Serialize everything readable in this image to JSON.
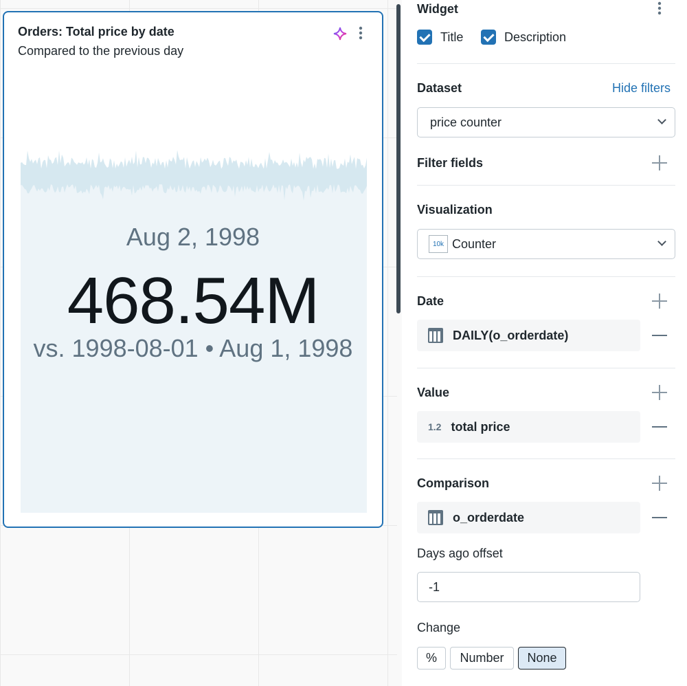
{
  "widget_card": {
    "title": "Orders: Total price by date",
    "description": "Compared to the previous day",
    "counter": {
      "date": "Aug 2, 1998",
      "value": "468.54M",
      "comparison": "vs. 1998-08-01 • Aug 1, 1998"
    },
    "icons": [
      "sparkle-icon",
      "kebab-menu-icon"
    ],
    "accent_color": "#2272b4"
  },
  "sidebar": {
    "widget": {
      "heading": "Widget",
      "title_label": "Title",
      "title_checked": true,
      "description_label": "Description",
      "description_checked": true
    },
    "dataset": {
      "heading": "Dataset",
      "hide_filters": "Hide filters",
      "selected": "price counter"
    },
    "filter_fields": {
      "heading": "Filter fields"
    },
    "visualization": {
      "heading": "Visualization",
      "icon_text": "10k",
      "selected": "Counter"
    },
    "date": {
      "heading": "Date",
      "field": "DAILY(o_orderdate)"
    },
    "value": {
      "heading": "Value",
      "type_badge": "1.2",
      "field": "total price"
    },
    "comparison": {
      "heading": "Comparison",
      "field": "o_orderdate",
      "offset_label": "Days ago offset",
      "offset_value": "-1",
      "change_label": "Change",
      "change_options": [
        "%",
        "Number",
        "None"
      ],
      "change_selected": "None"
    }
  }
}
